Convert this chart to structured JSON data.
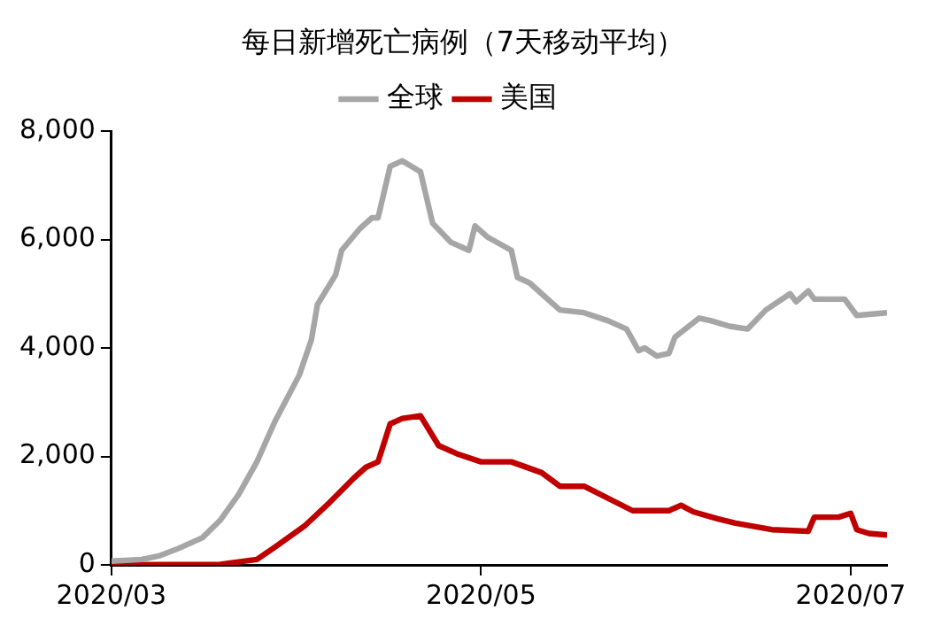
{
  "chart_data": {
    "type": "line",
    "title": "每日新增死亡病例（7天移动平均）",
    "xlim": [
      "2020-03-01",
      "2020-07-07"
    ],
    "xticks": [
      {
        "value": "2020-03-01",
        "label": "2020/03"
      },
      {
        "value": "2020-05-01",
        "label": "2020/05"
      },
      {
        "value": "2020-07-01",
        "label": "2020/07"
      }
    ],
    "ylim": [
      0,
      8000
    ],
    "yticks": [
      {
        "value": 0,
        "label": "0"
      },
      {
        "value": 2000,
        "label": "2,000"
      },
      {
        "value": 4000,
        "label": "4,000"
      },
      {
        "value": 6000,
        "label": "6,000"
      },
      {
        "value": 8000,
        "label": "8,000"
      }
    ],
    "grid": false,
    "legend": "top",
    "marker": "none",
    "line_style": "solid",
    "series": [
      {
        "name": "全球",
        "color": "#a6a6a6",
        "x": [
          "2020-03-01",
          "2020-03-06",
          "2020-03-09",
          "2020-03-12",
          "2020-03-16",
          "2020-03-19",
          "2020-03-22",
          "2020-03-25",
          "2020-03-28",
          "2020-04-01",
          "2020-04-03",
          "2020-04-04",
          "2020-04-07",
          "2020-04-08",
          "2020-04-11",
          "2020-04-13",
          "2020-04-14",
          "2020-04-16",
          "2020-04-18",
          "2020-04-21",
          "2020-04-23",
          "2020-04-26",
          "2020-04-29",
          "2020-04-30",
          "2020-05-02",
          "2020-05-06",
          "2020-05-07",
          "2020-05-09",
          "2020-05-14",
          "2020-05-18",
          "2020-05-22",
          "2020-05-25",
          "2020-05-27",
          "2020-05-28",
          "2020-05-30",
          "2020-06-01",
          "2020-06-02",
          "2020-06-06",
          "2020-06-08",
          "2020-06-11",
          "2020-06-14",
          "2020-06-17",
          "2020-06-21",
          "2020-06-22",
          "2020-06-24",
          "2020-06-25",
          "2020-06-30",
          "2020-07-02",
          "2020-07-07"
        ],
        "values": [
          70,
          100,
          170,
          300,
          500,
          830,
          1300,
          1900,
          2650,
          3500,
          4150,
          4800,
          5350,
          5800,
          6200,
          6400,
          6400,
          7350,
          7450,
          7250,
          6300,
          5950,
          5800,
          6250,
          6050,
          5800,
          5300,
          5200,
          4700,
          4650,
          4500,
          4350,
          3950,
          4000,
          3850,
          3900,
          4200,
          4550,
          4500,
          4400,
          4350,
          4700,
          5000,
          4850,
          5050,
          4900,
          4900,
          4600,
          4650
        ]
      },
      {
        "name": "美国",
        "color": "#c00000",
        "x": [
          "2020-03-01",
          "2020-03-19",
          "2020-03-25",
          "2020-03-28",
          "2020-04-02",
          "2020-04-06",
          "2020-04-10",
          "2020-04-12",
          "2020-04-14",
          "2020-04-16",
          "2020-04-18",
          "2020-04-21",
          "2020-04-24",
          "2020-04-27",
          "2020-05-01",
          "2020-05-06",
          "2020-05-11",
          "2020-05-14",
          "2020-05-18",
          "2020-05-26",
          "2020-06-01",
          "2020-06-03",
          "2020-06-05",
          "2020-06-09",
          "2020-06-12",
          "2020-06-18",
          "2020-06-24",
          "2020-06-25",
          "2020-06-29",
          "2020-07-01",
          "2020-07-02",
          "2020-07-04",
          "2020-07-07"
        ],
        "values": [
          0,
          10,
          100,
          330,
          730,
          1150,
          1600,
          1800,
          1900,
          2600,
          2700,
          2750,
          2200,
          2050,
          1900,
          1900,
          1700,
          1450,
          1450,
          1000,
          1000,
          1100,
          980,
          850,
          770,
          650,
          620,
          880,
          880,
          950,
          650,
          580,
          550
        ]
      }
    ]
  }
}
